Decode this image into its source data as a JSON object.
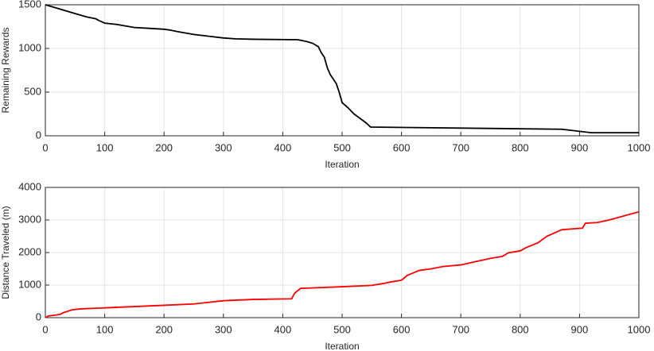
{
  "chart_data": [
    {
      "type": "line",
      "xlabel": "Iteration",
      "ylabel": "Remaining Rewards",
      "x": [
        0,
        60,
        70,
        85,
        90,
        100,
        120,
        150,
        175,
        200,
        210,
        225,
        250,
        300,
        320,
        350,
        425,
        440,
        450,
        460,
        465,
        470,
        475,
        480,
        490,
        495,
        500,
        510,
        520,
        530,
        540,
        548,
        870,
        920,
        1000
      ],
      "series": [
        {
          "color": "#000000",
          "values": [
            1500,
            1380,
            1360,
            1340,
            1320,
            1290,
            1275,
            1240,
            1230,
            1220,
            1210,
            1190,
            1160,
            1120,
            1110,
            1105,
            1100,
            1080,
            1060,
            1020,
            950,
            900,
            780,
            700,
            600,
            500,
            380,
            320,
            250,
            200,
            150,
            100,
            75,
            35,
            35
          ]
        }
      ],
      "xlim": [
        0,
        1000
      ],
      "xticks": [
        0,
        100,
        200,
        300,
        400,
        500,
        600,
        700,
        800,
        900,
        1000
      ],
      "ylim": [
        0,
        1500
      ],
      "yticks": [
        0,
        500,
        1000,
        1500
      ],
      "grid": true
    },
    {
      "type": "line",
      "xlabel": "Iteration",
      "ylabel": "Distance Traveled (m)",
      "x": [
        0,
        5,
        25,
        30,
        45,
        60,
        100,
        150,
        200,
        250,
        300,
        350,
        415,
        420,
        430,
        500,
        550,
        570,
        580,
        600,
        610,
        630,
        650,
        670,
        700,
        720,
        750,
        770,
        780,
        800,
        810,
        830,
        845,
        870,
        905,
        910,
        930,
        950,
        970,
        990,
        1000
      ],
      "series": [
        {
          "color": "#ff0000",
          "values": [
            0,
            50,
            100,
            150,
            240,
            270,
            300,
            340,
            380,
            420,
            520,
            560,
            580,
            750,
            900,
            950,
            990,
            1050,
            1090,
            1150,
            1300,
            1450,
            1500,
            1570,
            1620,
            1700,
            1820,
            1880,
            1990,
            2050,
            2150,
            2300,
            2500,
            2700,
            2750,
            2900,
            2920,
            3000,
            3100,
            3200,
            3250
          ]
        }
      ],
      "xlim": [
        0,
        1000
      ],
      "xticks": [
        0,
        100,
        200,
        300,
        400,
        500,
        600,
        700,
        800,
        900,
        1000
      ],
      "ylim": [
        0,
        4000
      ],
      "yticks": [
        0,
        1000,
        2000,
        3000,
        4000
      ],
      "grid": true
    }
  ]
}
